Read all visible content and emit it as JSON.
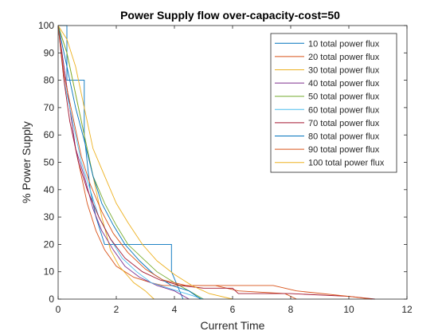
{
  "chart_data": {
    "type": "line",
    "title": "Power Supply flow over-capacity-cost=50",
    "xlabel": "Current Time",
    "ylabel": "% Power Supply",
    "xlim": [
      0,
      12
    ],
    "ylim": [
      0,
      100
    ],
    "xticks": [
      0,
      2,
      4,
      6,
      8,
      10,
      12
    ],
    "yticks": [
      0,
      10,
      20,
      30,
      40,
      50,
      60,
      70,
      80,
      90,
      100
    ],
    "grid": false,
    "legend_position": "top-right",
    "series": [
      {
        "name": "10 total power flux",
        "color": "#0072BD",
        "x": [
          0,
          0.3,
          0.3,
          0.5,
          0.5,
          0.9,
          0.9,
          1.1,
          1.3,
          1.6,
          2.0,
          2.4,
          3.2,
          3.2,
          3.9,
          3.9,
          4.3
        ],
        "y": [
          100,
          100,
          80,
          80,
          80,
          80,
          60,
          40,
          30,
          20,
          20,
          20,
          20,
          20,
          20,
          10,
          0
        ]
      },
      {
        "name": "20 total power flux",
        "color": "#D95319",
        "x": [
          0,
          0.2,
          0.4,
          0.6,
          0.8,
          1.0,
          1.3,
          1.6,
          2.0,
          2.6,
          3.2,
          3.6,
          4.6,
          5.4,
          6.2,
          7.8,
          8.2
        ],
        "y": [
          100,
          85,
          70,
          55,
          45,
          35,
          25,
          18,
          12,
          8,
          6,
          5,
          5,
          5,
          3,
          2,
          0
        ]
      },
      {
        "name": "30 total power flux",
        "color": "#EDB120",
        "x": [
          0,
          0.3,
          0.6,
          0.9,
          1.2,
          1.5,
          1.8,
          2.1,
          2.6,
          3.0,
          3.3
        ],
        "y": [
          100,
          90,
          75,
          60,
          45,
          30,
          18,
          12,
          6,
          3,
          0
        ]
      },
      {
        "name": "40 total power flux",
        "color": "#7E2F8E",
        "x": [
          0,
          0.2,
          0.4,
          0.6,
          0.9,
          1.2,
          1.5,
          1.9,
          2.3,
          2.8,
          3.4,
          4.0,
          4.5
        ],
        "y": [
          100,
          85,
          70,
          55,
          45,
          33,
          25,
          18,
          12,
          8,
          5,
          3,
          0
        ]
      },
      {
        "name": "50 total power flux",
        "color": "#77AC30",
        "x": [
          0,
          0.3,
          0.6,
          0.9,
          1.2,
          1.6,
          2.0,
          2.4,
          2.9,
          3.4,
          4.0,
          4.5,
          5.0
        ],
        "y": [
          100,
          90,
          75,
          60,
          45,
          35,
          27,
          20,
          15,
          10,
          6,
          3,
          0
        ]
      },
      {
        "name": "60 total power flux",
        "color": "#4DBEEE",
        "x": [
          0,
          0.2,
          0.5,
          0.8,
          1.1,
          1.4,
          1.8,
          2.2,
          2.7,
          3.2,
          3.8,
          4.4,
          5.0
        ],
        "y": [
          100,
          80,
          65,
          50,
          40,
          30,
          22,
          15,
          10,
          6,
          4,
          2,
          0
        ]
      },
      {
        "name": "70 total power flux",
        "color": "#A2142F",
        "x": [
          0,
          0.2,
          0.4,
          0.7,
          1.0,
          1.4,
          1.8,
          2.3,
          2.9,
          3.5,
          4.2,
          5.0,
          6.0,
          6.2,
          8.0,
          10.0,
          10.9
        ],
        "y": [
          100,
          80,
          65,
          50,
          40,
          30,
          22,
          15,
          10,
          7,
          5,
          4,
          4,
          2,
          2,
          1,
          0
        ]
      },
      {
        "name": "80 total power flux",
        "color": "#0072BD",
        "x": [
          0,
          0.3,
          0.6,
          0.9,
          1.2,
          1.5,
          1.9,
          2.3,
          2.8,
          3.3,
          3.9,
          4.5,
          4.9
        ],
        "y": [
          100,
          85,
          70,
          58,
          45,
          35,
          27,
          20,
          14,
          9,
          5,
          3,
          0
        ]
      },
      {
        "name": "90 total power flux",
        "color": "#D95319",
        "x": [
          0,
          0.2,
          0.5,
          0.8,
          1.1,
          1.5,
          1.9,
          2.4,
          3.0,
          3.6,
          4.4,
          5.2,
          6.0,
          7.4,
          8.2,
          10.0,
          10.8
        ],
        "y": [
          100,
          82,
          67,
          52,
          42,
          32,
          24,
          17,
          11,
          7,
          5,
          5,
          5,
          5,
          3,
          1,
          0
        ]
      },
      {
        "name": "100 total power flux",
        "color": "#EDB120",
        "x": [
          0,
          0.3,
          0.6,
          0.9,
          1.2,
          1.6,
          2.0,
          2.4,
          2.9,
          3.4,
          4.0,
          4.6,
          5.2,
          6.0
        ],
        "y": [
          100,
          95,
          85,
          70,
          55,
          45,
          35,
          28,
          20,
          14,
          9,
          5,
          2,
          0
        ]
      }
    ]
  }
}
